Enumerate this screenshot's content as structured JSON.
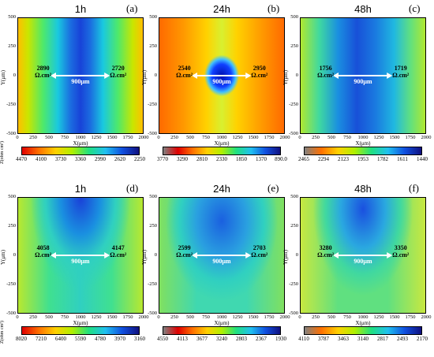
{
  "figure": {
    "x_axis_label": "X(μm)",
    "y_axis_label": "Y(μm)",
    "colorbar_label": "Z(ohm cm²)",
    "x_ticks": [
      "0",
      "250",
      "500",
      "750",
      "1000",
      "1250",
      "1500",
      "1750",
      "2000"
    ],
    "y_ticks": [
      "500",
      "250",
      "0",
      "-250",
      "-500"
    ],
    "distance_label": "900μm",
    "unit_label": "Ω.cm²",
    "panels": [
      {
        "letter": "(a)",
        "time": "1h",
        "left_value": "2890",
        "right_value": "2720",
        "colorbar_ticks": [
          "4470",
          "4100",
          "3730",
          "3360",
          "2990",
          "2620",
          "2250"
        ]
      },
      {
        "letter": "(b)",
        "time": "24h",
        "left_value": "2540",
        "right_value": "2950",
        "colorbar_ticks": [
          "3770",
          "3290",
          "2810",
          "2330",
          "1850",
          "1370",
          "890.0"
        ]
      },
      {
        "letter": "(c)",
        "time": "48h",
        "left_value": "1756",
        "right_value": "1719",
        "colorbar_ticks": [
          "2465",
          "2294",
          "2123",
          "1953",
          "1782",
          "1611",
          "1440"
        ]
      },
      {
        "letter": "(d)",
        "time": "1h",
        "left_value": "4058",
        "right_value": "4147",
        "colorbar_ticks": [
          "8020",
          "7210",
          "6400",
          "5590",
          "4780",
          "3970",
          "3160"
        ]
      },
      {
        "letter": "(e)",
        "time": "24h",
        "left_value": "2599",
        "right_value": "2703",
        "colorbar_ticks": [
          "4550",
          "4113",
          "3677",
          "3240",
          "2803",
          "2367",
          "1930"
        ]
      },
      {
        "letter": "(f)",
        "time": "48h",
        "left_value": "3280",
        "right_value": "3350",
        "colorbar_ticks": [
          "4110",
          "3787",
          "3463",
          "3140",
          "2817",
          "2493",
          "2170"
        ]
      }
    ]
  },
  "chart_data": {
    "type": "heatmap",
    "description_axes": {
      "x_range": [
        0,
        2000
      ],
      "y_range": [
        -500,
        500
      ]
    },
    "panels": [
      {
        "panel": "a",
        "time": "1h",
        "z_range": [
          2250,
          4470
        ],
        "left_impedance": 2890,
        "right_impedance": 2720,
        "separation_um": 900
      },
      {
        "panel": "b",
        "time": "24h",
        "z_range": [
          890,
          3770
        ],
        "left_impedance": 2540,
        "right_impedance": 2950,
        "separation_um": 900
      },
      {
        "panel": "c",
        "time": "48h",
        "z_range": [
          1440,
          2465
        ],
        "left_impedance": 1756,
        "right_impedance": 1719,
        "separation_um": 900
      },
      {
        "panel": "d",
        "time": "1h",
        "z_range": [
          3160,
          8020
        ],
        "left_impedance": 4058,
        "right_impedance": 4147,
        "separation_um": 900
      },
      {
        "panel": "e",
        "time": "24h",
        "z_range": [
          1930,
          4550
        ],
        "left_impedance": 2599,
        "right_impedance": 2703,
        "separation_um": 900
      },
      {
        "panel": "f",
        "time": "48h",
        "z_range": [
          2170,
          4110
        ],
        "left_impedance": 3280,
        "right_impedance": 3350,
        "separation_um": 900
      }
    ]
  }
}
